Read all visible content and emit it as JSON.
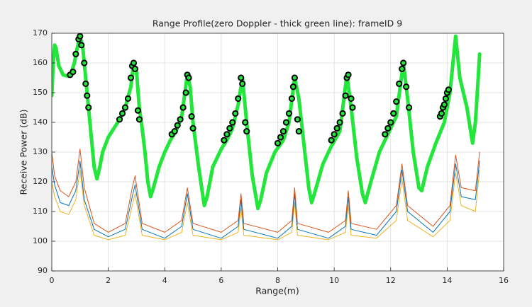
{
  "chart_data": {
    "type": "line",
    "title": "Range Profile(zero Doppler - thick green line): frameID 9",
    "xlabel": "Range(m)",
    "ylabel": "Receive Power (dB)",
    "xlim": [
      0,
      16
    ],
    "ylim": [
      90,
      170
    ],
    "xticks": [
      0,
      2,
      4,
      6,
      8,
      10,
      12,
      14,
      16
    ],
    "yticks": [
      90,
      100,
      110,
      120,
      130,
      140,
      150,
      160,
      170
    ],
    "grid": true,
    "series": [
      {
        "style": "line",
        "color": "#edb120",
        "width": 1,
        "x": [
          0,
          0.1,
          0.3,
          0.6,
          0.85,
          1.0,
          1.15,
          1.5,
          2.0,
          2.6,
          2.85,
          2.95,
          3.2,
          4.0,
          4.6,
          4.8,
          5.0,
          6.0,
          6.6,
          6.7,
          6.8,
          8.0,
          8.5,
          8.6,
          8.7,
          9.8,
          10.4,
          10.5,
          10.6,
          11.5,
          12.2,
          12.4,
          12.6,
          13.5,
          14.1,
          14.3,
          14.5,
          15.0,
          15.15
        ],
        "values": [
          120,
          115,
          110,
          109,
          114,
          124,
          112,
          102,
          100.5,
          102,
          112,
          116,
          102,
          100.5,
          103,
          113,
          102,
          100.5,
          103,
          111,
          102,
          100.5,
          103,
          113,
          102,
          100.5,
          103,
          112,
          102,
          101,
          107,
          121,
          107,
          101.5,
          107,
          123,
          112,
          110,
          124
        ]
      },
      {
        "style": "line",
        "color": "#0072bd",
        "width": 1,
        "x": [
          0,
          0.1,
          0.3,
          0.6,
          0.85,
          1.0,
          1.15,
          1.5,
          2.0,
          2.6,
          2.85,
          2.95,
          3.2,
          4.0,
          4.6,
          4.8,
          5.0,
          6.0,
          6.6,
          6.7,
          6.8,
          8.0,
          8.5,
          8.6,
          8.7,
          9.8,
          10.4,
          10.5,
          10.6,
          11.5,
          12.2,
          12.4,
          12.6,
          13.5,
          14.1,
          14.3,
          14.5,
          15.0,
          15.15
        ],
        "values": [
          125,
          119,
          113,
          112,
          117,
          127,
          114,
          104,
          101.5,
          104,
          115,
          119,
          104,
          101,
          105,
          116,
          104,
          101,
          105,
          114,
          104,
          101,
          105,
          116,
          104,
          101,
          105,
          115,
          104,
          102,
          110,
          124,
          110,
          103,
          110,
          126,
          115,
          114,
          127
        ]
      },
      {
        "style": "line",
        "color": "#d95319",
        "width": 1,
        "x": [
          0,
          0.1,
          0.3,
          0.6,
          0.85,
          1.0,
          1.15,
          1.5,
          2.0,
          2.6,
          2.85,
          2.95,
          3.2,
          4.0,
          4.6,
          4.8,
          5.0,
          6.0,
          6.6,
          6.7,
          6.8,
          8.0,
          8.5,
          8.6,
          8.7,
          9.8,
          10.4,
          10.5,
          10.6,
          11.5,
          12.2,
          12.4,
          12.6,
          13.5,
          14.1,
          14.3,
          14.5,
          15.0,
          15.15
        ],
        "values": [
          130,
          122,
          117,
          115,
          120,
          131,
          118,
          106,
          103,
          106,
          118,
          122,
          106,
          103,
          107,
          118,
          106,
          103,
          107,
          116,
          106,
          103,
          107,
          118,
          106,
          103,
          107,
          117,
          106,
          104,
          112,
          126,
          112,
          105,
          112,
          129,
          118,
          117,
          130
        ]
      },
      {
        "style": "line",
        "color": "#22e63a",
        "width": 5,
        "x": [
          0,
          0.05,
          0.1,
          0.15,
          0.25,
          0.4,
          0.6,
          0.7,
          0.8,
          0.9,
          1.0,
          1.1,
          1.2,
          1.3,
          1.4,
          1.5,
          1.6,
          1.7,
          1.8,
          2.0,
          2.2,
          2.4,
          2.6,
          2.8,
          2.9,
          3.0,
          3.1,
          3.2,
          3.3,
          3.4,
          3.5,
          3.6,
          3.8,
          4.0,
          4.2,
          4.4,
          4.6,
          4.8,
          4.9,
          5.0,
          5.2,
          5.4,
          5.5,
          5.7,
          6.0,
          6.2,
          6.4,
          6.6,
          6.75,
          6.9,
          7.1,
          7.3,
          7.4,
          7.6,
          7.9,
          8.2,
          8.4,
          8.6,
          8.75,
          8.9,
          9.1,
          9.2,
          9.3,
          9.6,
          9.9,
          10.2,
          10.45,
          10.6,
          10.8,
          11.0,
          11.1,
          11.3,
          11.6,
          11.9,
          12.2,
          12.45,
          12.6,
          12.8,
          13.0,
          13.1,
          13.3,
          13.6,
          13.9,
          14.1,
          14.3,
          14.45,
          14.7,
          14.9,
          15.0,
          15.1,
          15.15
        ],
        "values": [
          149,
          160,
          166,
          165,
          159,
          156,
          155.5,
          157,
          160,
          165,
          169,
          165,
          155,
          145,
          135,
          125,
          121,
          125,
          130,
          135,
          138,
          141,
          145,
          152,
          160,
          157,
          145,
          138,
          130,
          120,
          115,
          118,
          125,
          130,
          134,
          137,
          142,
          156,
          152,
          140,
          125,
          112,
          115,
          125,
          131,
          134,
          138,
          146,
          155,
          140,
          122,
          111,
          114,
          123,
          130,
          134,
          140,
          155,
          148,
          135,
          118,
          113,
          116,
          126,
          132,
          137,
          156,
          145,
          128,
          116,
          113,
          120,
          130,
          136,
          142,
          160,
          148,
          130,
          118,
          117,
          125,
          133,
          140,
          150,
          169,
          155,
          145,
          133,
          140,
          155,
          163
        ]
      },
      {
        "style": "markers",
        "color": "#000000",
        "fill": "#22e63a",
        "x": [
          0.65,
          0.75,
          0.85,
          0.95,
          1.0,
          1.05,
          1.15,
          1.2,
          1.25,
          1.3,
          2.4,
          2.5,
          2.6,
          2.7,
          2.8,
          2.85,
          2.9,
          2.95,
          3.05,
          3.1,
          4.25,
          4.35,
          4.45,
          4.55,
          4.65,
          4.75,
          4.8,
          4.85,
          4.95,
          5.0,
          6.1,
          6.2,
          6.3,
          6.4,
          6.5,
          6.6,
          6.7,
          6.75,
          6.85,
          6.9,
          8.0,
          8.1,
          8.2,
          8.3,
          8.4,
          8.5,
          8.55,
          8.6,
          8.7,
          8.75,
          9.9,
          10.0,
          10.1,
          10.2,
          10.3,
          10.4,
          10.45,
          10.5,
          10.6,
          10.65,
          11.8,
          11.9,
          12.0,
          12.1,
          12.2,
          12.3,
          12.4,
          12.45,
          12.55,
          12.65,
          13.75,
          13.8,
          13.85,
          13.9,
          13.95,
          14.0,
          14.05
        ],
        "values": [
          156,
          157,
          163,
          168,
          169,
          166,
          160,
          153,
          149,
          145,
          141,
          143,
          145,
          148,
          155,
          159,
          160,
          158,
          144,
          141,
          136,
          137,
          139,
          141,
          145,
          150,
          156,
          155,
          142,
          138,
          134,
          136,
          138,
          140,
          143,
          148,
          155,
          153,
          140,
          137,
          133,
          135,
          137,
          140,
          143,
          148,
          152,
          155,
          141,
          137,
          134,
          136,
          138,
          140,
          143,
          149,
          155,
          156,
          148,
          145,
          136,
          138,
          140,
          143,
          147,
          153,
          158,
          160,
          152,
          145,
          142,
          143,
          145,
          146,
          148,
          150,
          151
        ]
      }
    ]
  }
}
